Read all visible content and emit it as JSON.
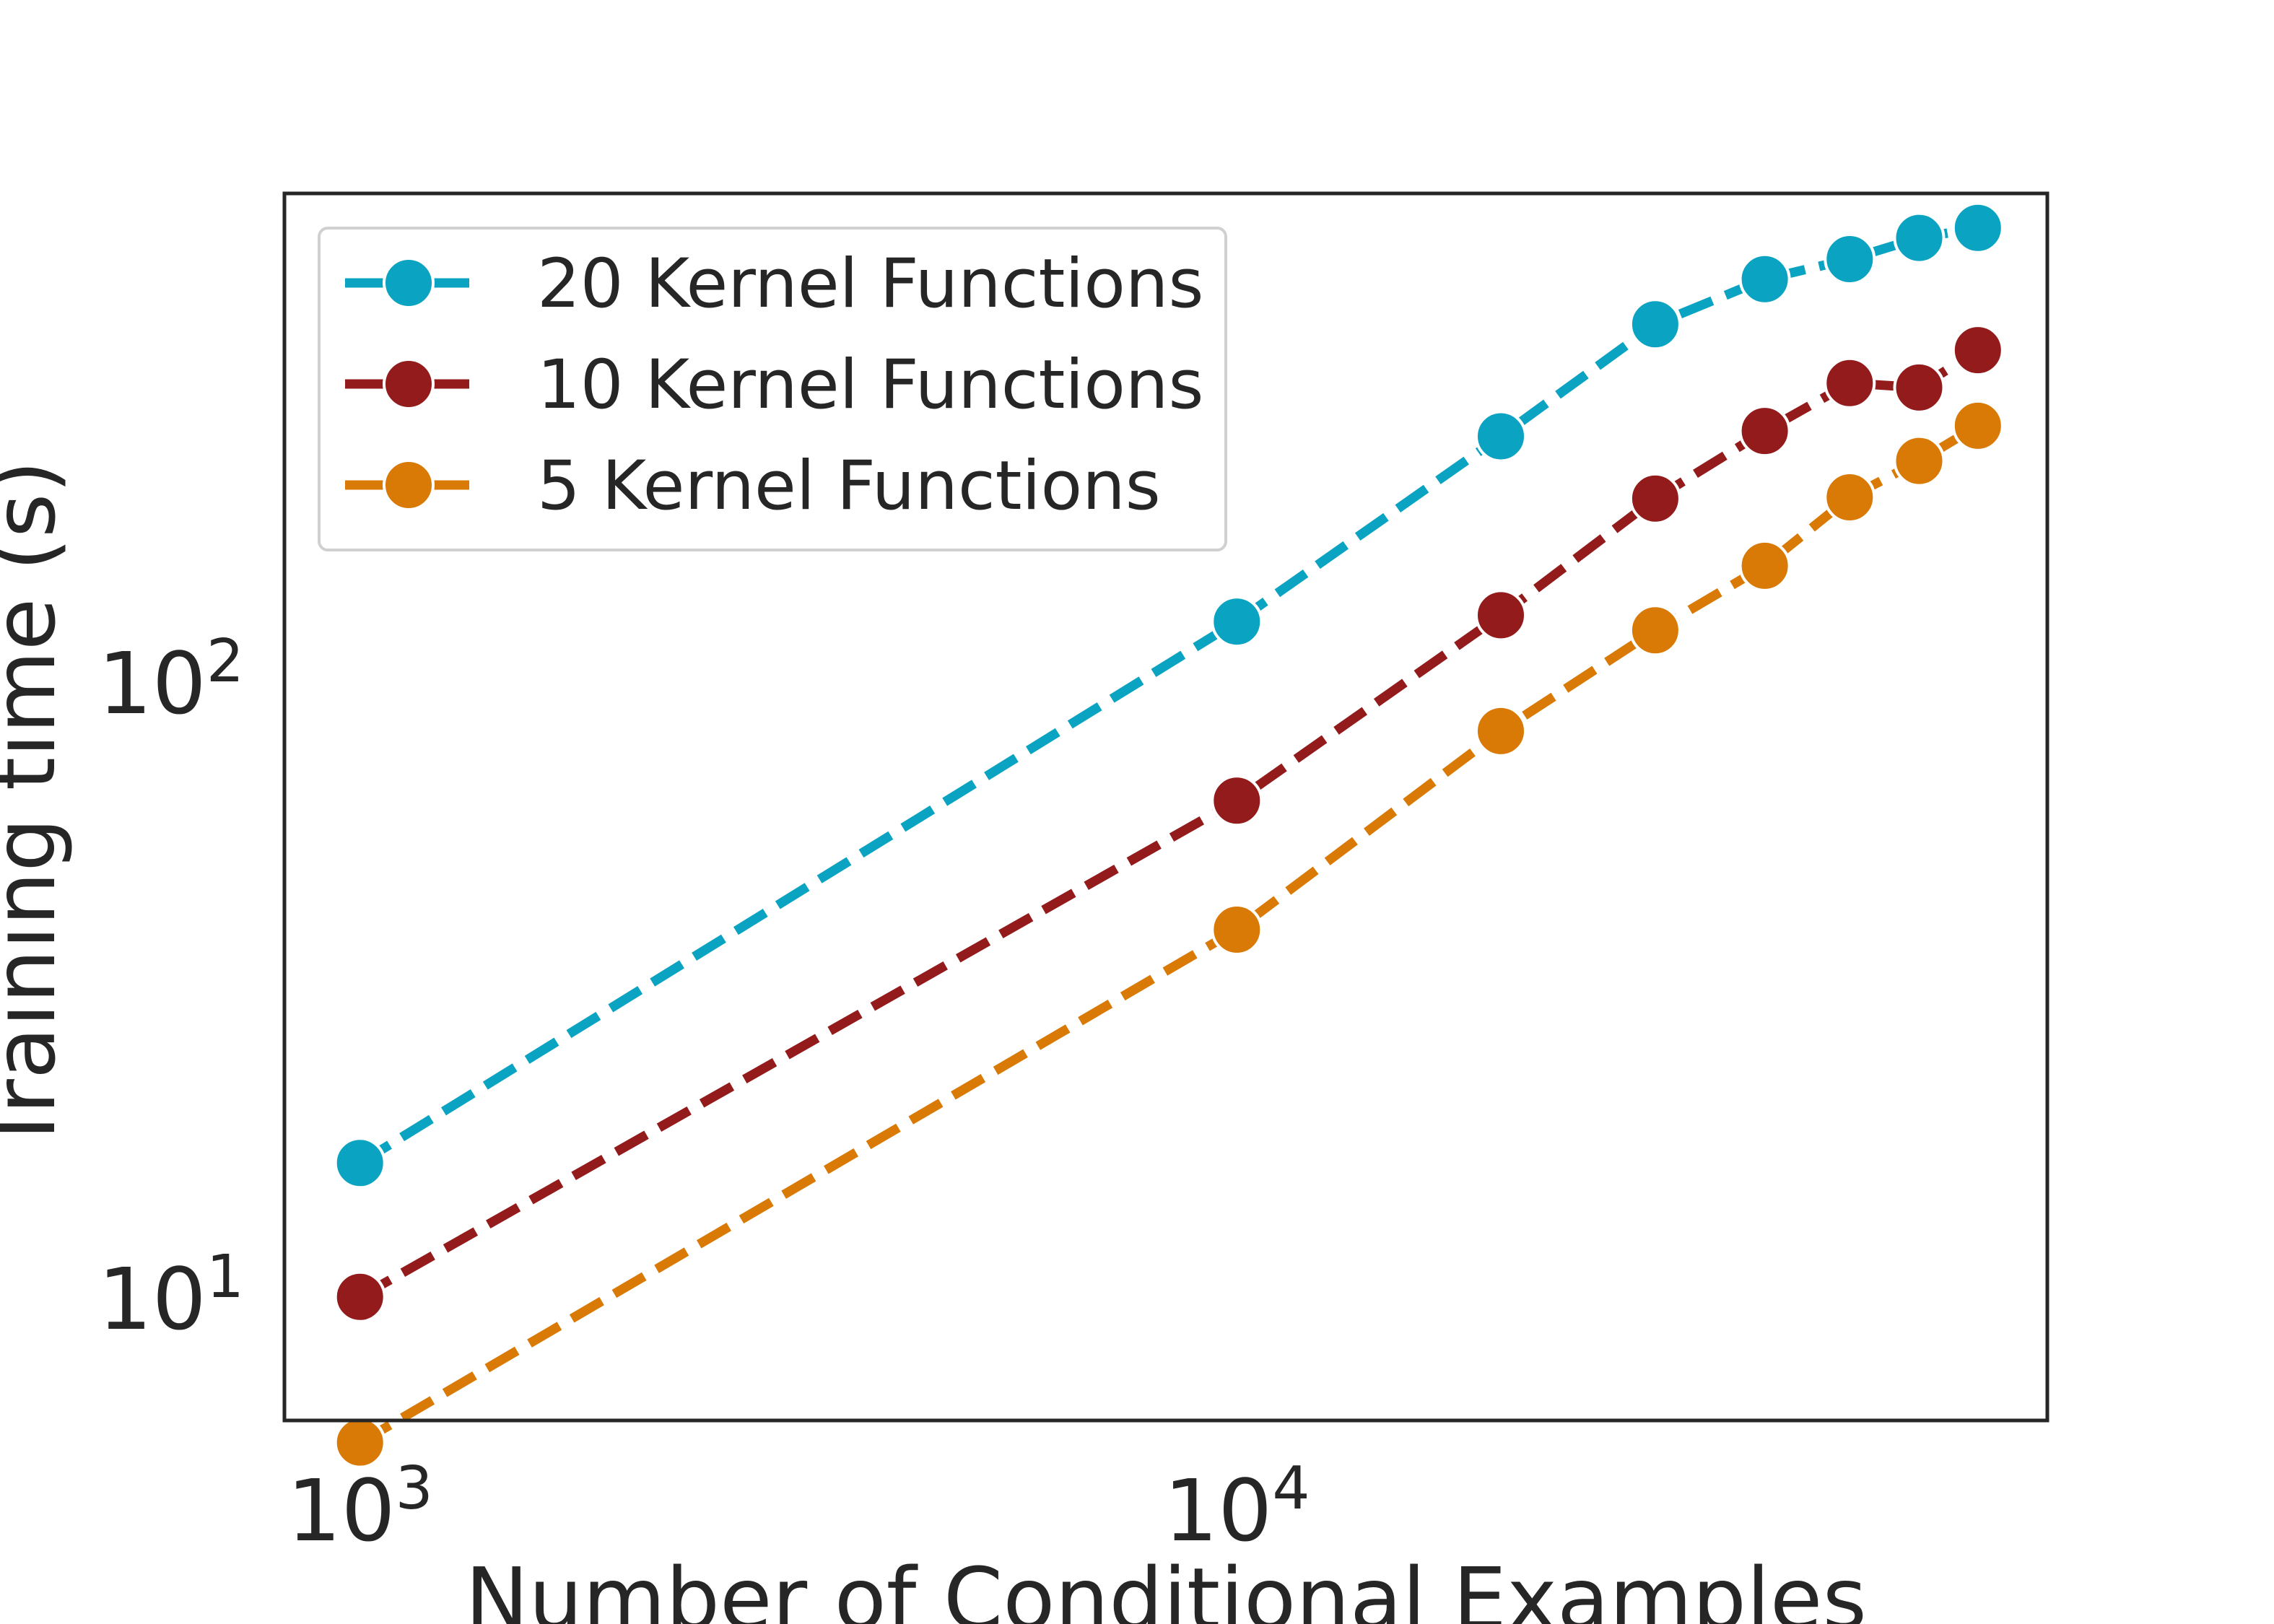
{
  "chart_data": {
    "type": "line",
    "title": "",
    "xlabel": "Number of Conditional Examples",
    "ylabel": "Training time (s)",
    "x_scale": "log",
    "y_scale": "log",
    "xlim": [
      820,
      84000
    ],
    "ylim": [
      6.3,
      620
    ],
    "grid": false,
    "legend_position": "top-left",
    "x_ticks": [
      {
        "value": 1000,
        "base": "10",
        "exp": "3"
      },
      {
        "value": 10000,
        "base": "10",
        "exp": "4"
      }
    ],
    "y_ticks": [
      {
        "value": 10,
        "base": "10",
        "exp": "1"
      },
      {
        "value": 100,
        "base": "10",
        "exp": "2"
      }
    ],
    "x": [
      1000,
      10000,
      20000,
      30000,
      40000,
      50000,
      60000,
      70000
    ],
    "series": [
      {
        "name": "20 Kernel Functions",
        "color": "#0aa3c2",
        "values": [
          16.5,
          125,
          250,
          380,
          450,
          485,
          525,
          545
        ]
      },
      {
        "name": "10 Kernel Functions",
        "color": "#931b1b",
        "values": [
          10,
          64,
          128,
          198,
          255,
          305,
          300,
          345
        ]
      },
      {
        "name": "5 Kernel Functions",
        "color": "#d97a06",
        "values": [
          5.8,
          39.5,
          83,
          121,
          154,
          199,
          228,
          260
        ]
      }
    ]
  }
}
